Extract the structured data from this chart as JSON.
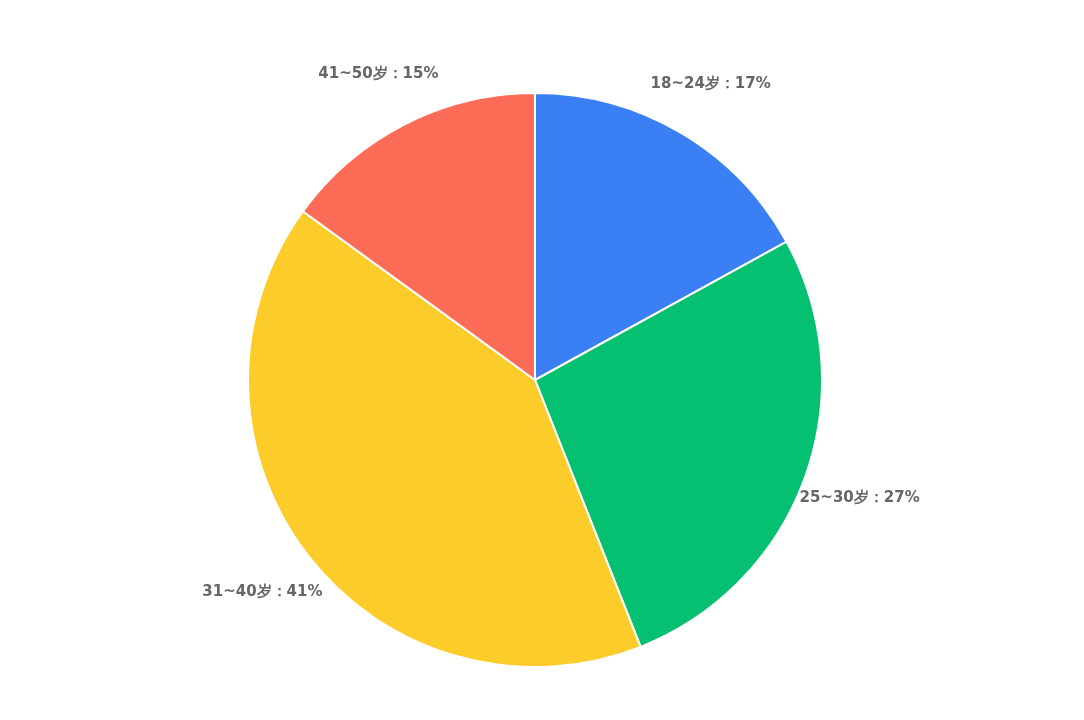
{
  "chart_data": {
    "type": "pie",
    "categories": [
      "18~24岁",
      "25~30岁",
      "31~40岁",
      "41~50岁"
    ],
    "values": [
      17,
      27,
      41,
      15
    ],
    "value_labels": [
      "17%",
      "27%",
      "41%",
      "15%"
    ],
    "colors": [
      "#3b7ff5",
      "#05c070",
      "#fccd2a",
      "#fd6c57"
    ]
  }
}
